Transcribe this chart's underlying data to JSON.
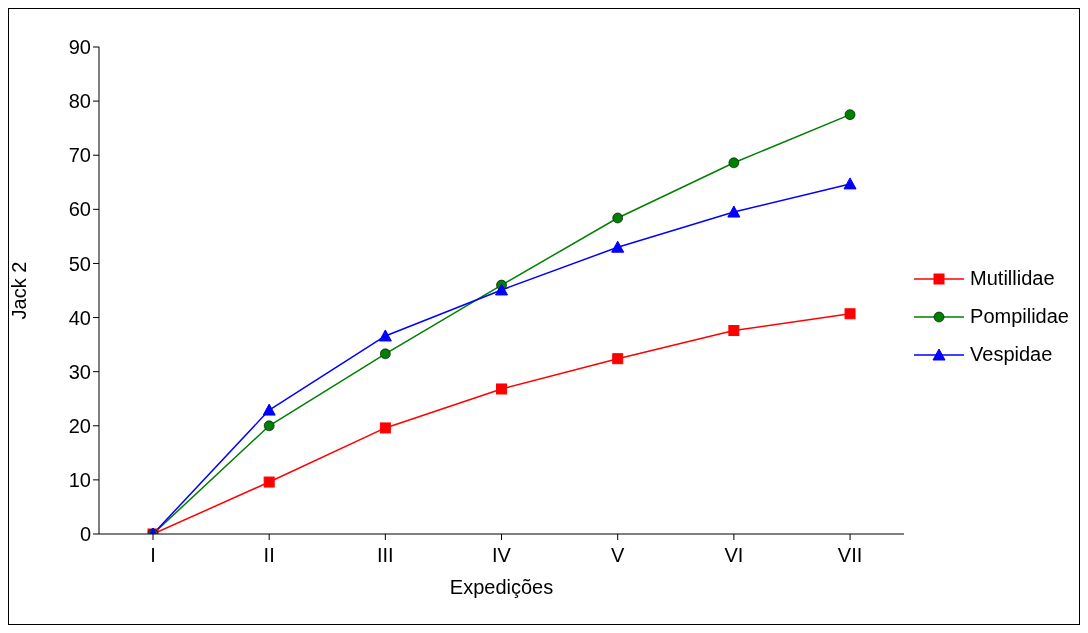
{
  "chart_data": {
    "type": "line",
    "xlabel": "Expedições",
    "ylabel": "Jack 2",
    "categories": [
      "I",
      "II",
      "III",
      "IV",
      "V",
      "VI",
      "VII"
    ],
    "series": [
      {
        "name": "Mutillidae",
        "color": "#ff0000",
        "marker": "square",
        "values": [
          0,
          9.6,
          19.6,
          26.8,
          32.4,
          37.6,
          40.7
        ]
      },
      {
        "name": "Pompilidae",
        "color": "#008000",
        "marker": "circle",
        "values": [
          0,
          20.0,
          33.3,
          46.0,
          58.4,
          68.6,
          77.5
        ]
      },
      {
        "name": "Vespidae",
        "color": "#0000ff",
        "marker": "triangle",
        "values": [
          0,
          22.9,
          36.6,
          45.1,
          53.0,
          59.5,
          64.7
        ]
      }
    ],
    "ylim": [
      0,
      90
    ],
    "yticks": [
      0,
      10,
      20,
      30,
      40,
      50,
      60,
      70,
      80,
      90
    ],
    "grid": false,
    "legend": "right"
  }
}
